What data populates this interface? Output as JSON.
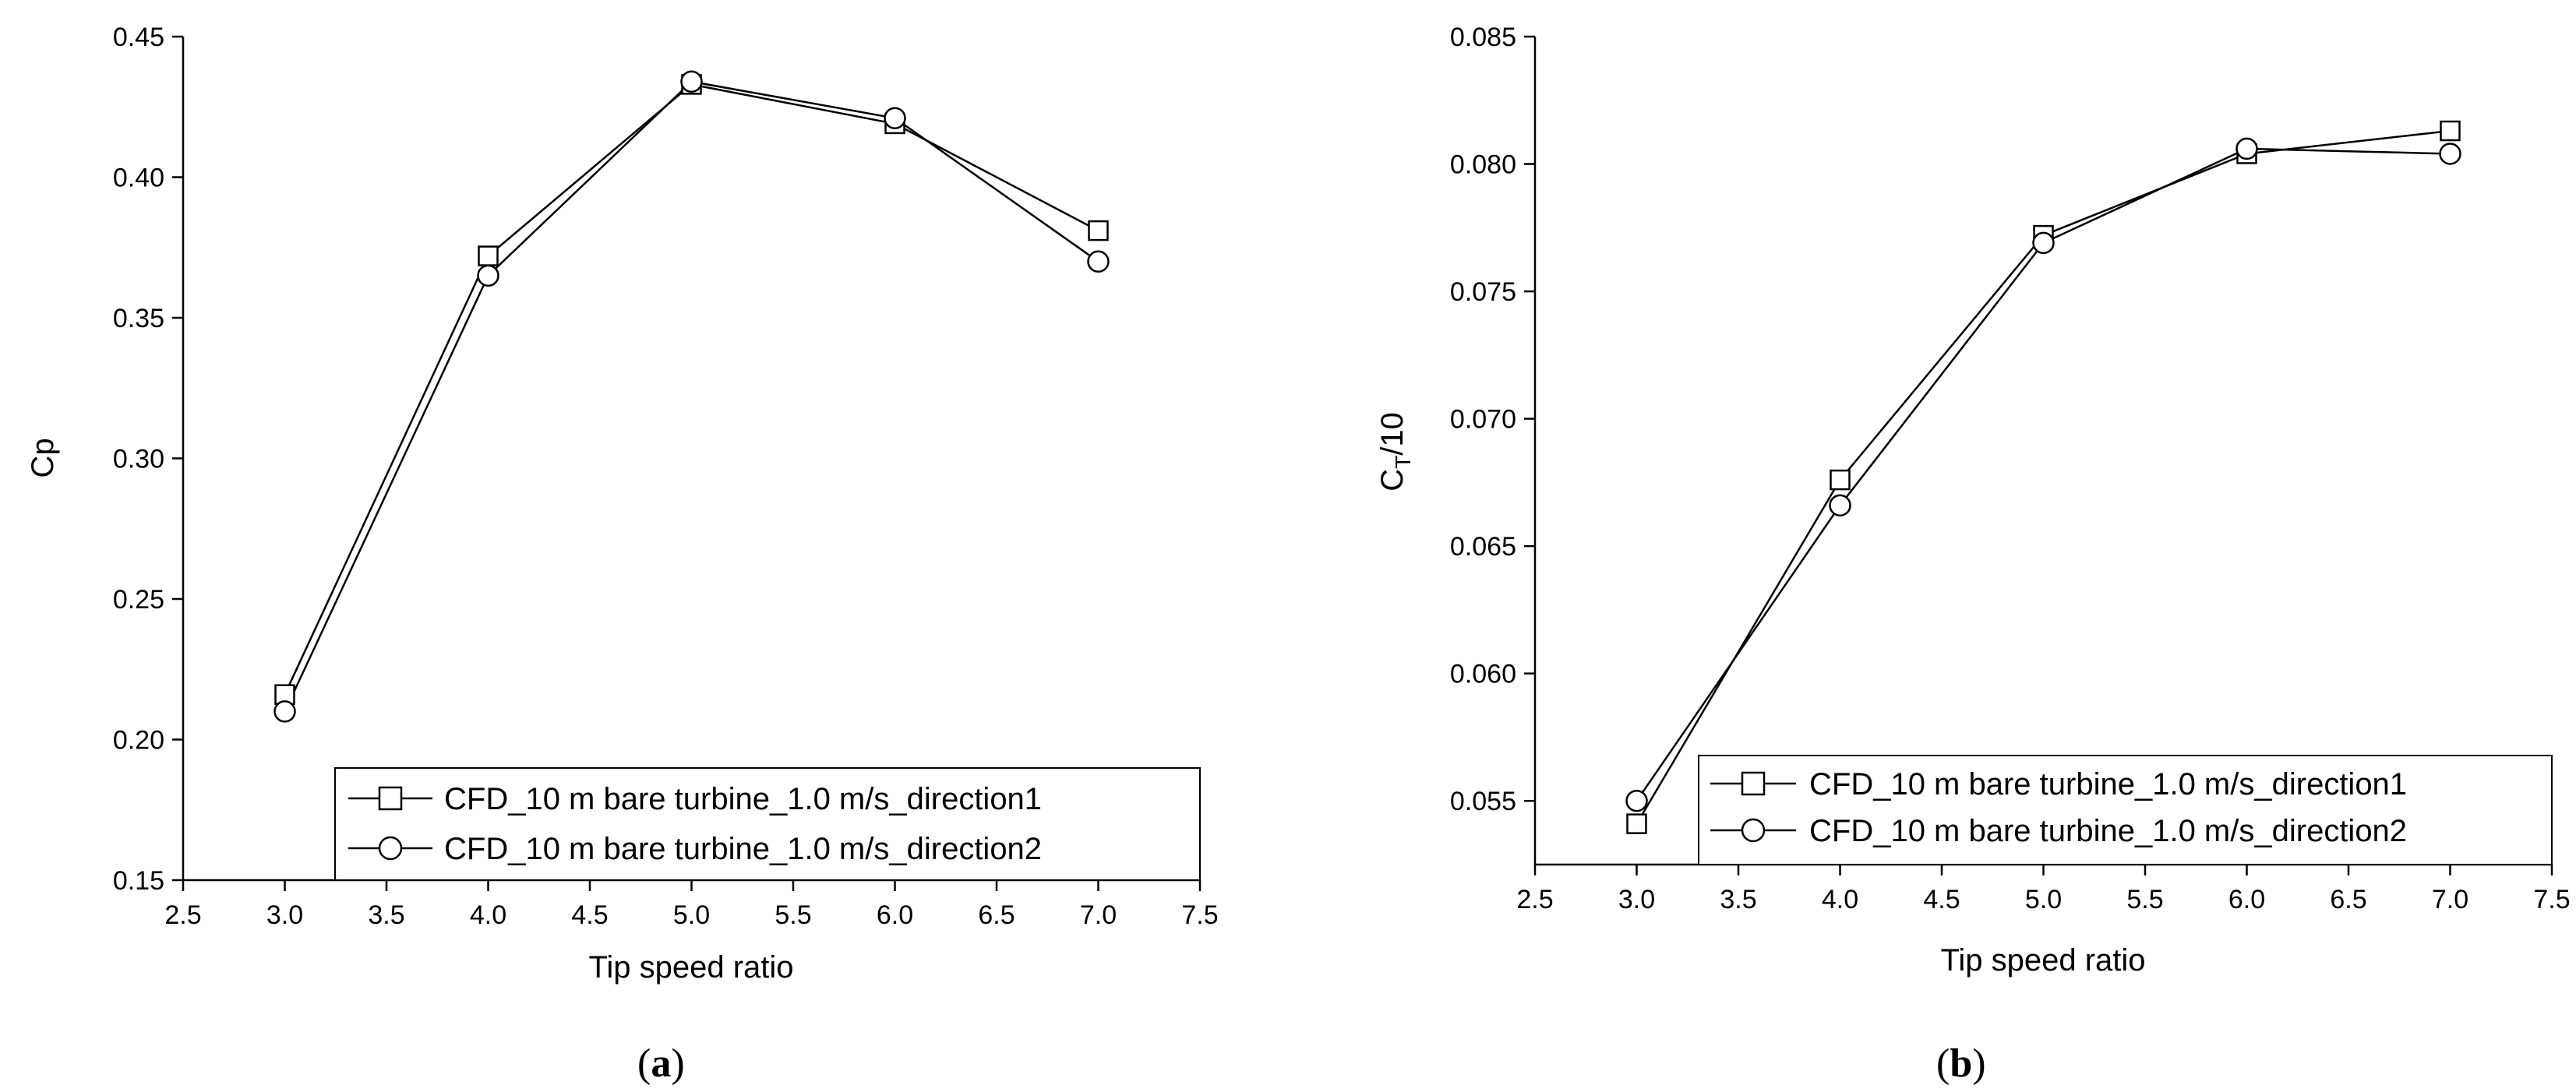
{
  "chart_data": [
    {
      "type": "line",
      "panel_label": "a",
      "xlabel": "Tip speed ratio",
      "ylabel": "Cp",
      "xlim": [
        2.5,
        7.5
      ],
      "ylim": [
        0.15,
        0.45
      ],
      "xticks": [
        2.5,
        3.0,
        3.5,
        4.0,
        4.5,
        5.0,
        5.5,
        6.0,
        6.5,
        7.0,
        7.5
      ],
      "yticks": [
        0.15,
        0.2,
        0.25,
        0.3,
        0.35,
        0.4,
        0.45
      ],
      "xtick_labels": [
        "2.5",
        "3.0",
        "3.5",
        "4.0",
        "4.5",
        "5.0",
        "5.5",
        "6.0",
        "6.5",
        "7.0",
        "7.5"
      ],
      "ytick_labels": [
        "0.15",
        "0.20",
        "0.25",
        "0.30",
        "0.35",
        "0.40",
        "0.45"
      ],
      "x": [
        3.0,
        4.0,
        5.0,
        6.0,
        7.0
      ],
      "series": [
        {
          "name": "CFD_10 m bare turbine_1.0 m/s_direction1",
          "marker": "square",
          "values": [
            0.216,
            0.372,
            0.433,
            0.419,
            0.381
          ]
        },
        {
          "name": "CFD_10 m bare turbine_1.0 m/s_direction2",
          "marker": "circle",
          "values": [
            0.21,
            0.365,
            0.434,
            0.421,
            0.37
          ]
        }
      ],
      "grid": false,
      "legend_position": "bottom-right"
    },
    {
      "type": "line",
      "panel_label": "b",
      "xlabel": "Tip speed ratio",
      "ylabel_main": "C",
      "ylabel_sub": "T",
      "ylabel_suffix": "/10",
      "xlim": [
        2.5,
        7.5
      ],
      "ylim": [
        0.0525,
        0.085
      ],
      "xticks": [
        2.5,
        3.0,
        3.5,
        4.0,
        4.5,
        5.0,
        5.5,
        6.0,
        6.5,
        7.0,
        7.5
      ],
      "yticks": [
        0.055,
        0.06,
        0.065,
        0.07,
        0.075,
        0.08,
        0.085
      ],
      "xtick_labels": [
        "2.5",
        "3.0",
        "3.5",
        "4.0",
        "4.5",
        "5.0",
        "5.5",
        "6.0",
        "6.5",
        "7.0",
        "7.5"
      ],
      "ytick_labels": [
        "0.055",
        "0.060",
        "0.065",
        "0.070",
        "0.075",
        "0.080",
        "0.085"
      ],
      "x": [
        3.0,
        4.0,
        5.0,
        6.0,
        7.0
      ],
      "series": [
        {
          "name": "CFD_10 m bare turbine_1.0 m/s_direction1",
          "marker": "square",
          "values": [
            0.0541,
            0.0676,
            0.0772,
            0.0804,
            0.0813
          ]
        },
        {
          "name": "CFD_10 m bare turbine_1.0 m/s_direction2",
          "marker": "circle",
          "values": [
            0.055,
            0.0666,
            0.0769,
            0.0806,
            0.0804
          ]
        }
      ],
      "grid": false,
      "legend_position": "bottom-right"
    }
  ]
}
